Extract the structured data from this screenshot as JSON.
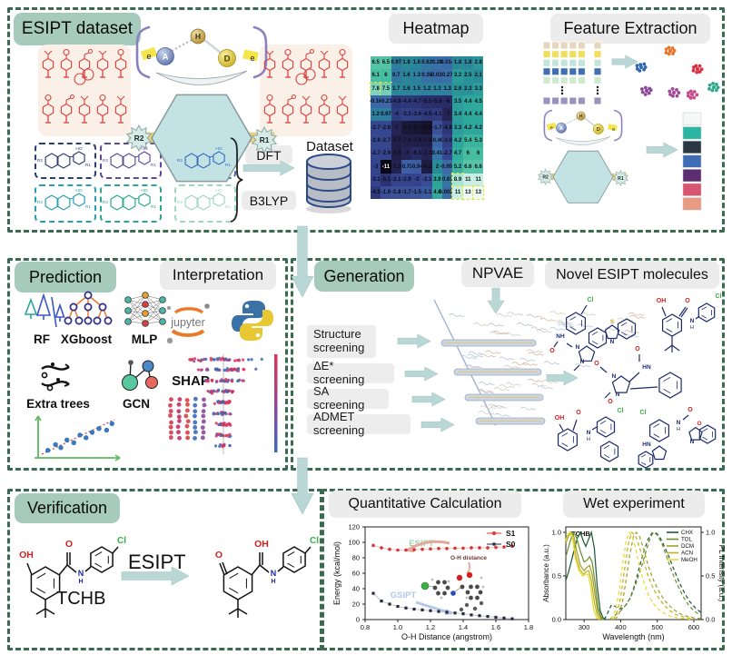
{
  "colors": {
    "section_border": "#3b6a50",
    "green_label_bg": "#a6cbbd",
    "gray_label_bg": "#ececec",
    "arrow": "#b9d7d5",
    "red_molecule": "#d64541",
    "hexagon_fill": "#c2e2e4",
    "bracket_purple": "#8c7fc0",
    "s1_red": "#e03030",
    "s0_navy": "#232a45"
  },
  "dataset": {
    "title": "ESIPT dataset",
    "motif": {
      "acceptor": "A",
      "hydrogen": "H",
      "donor": "D",
      "electron": "e",
      "left_substituent": "R2",
      "right_substituent": "R1"
    },
    "scaffold_labels": {
      "left": "R2",
      "right": "R1",
      "hydroxyl": "HO"
    },
    "method_1": "DFT",
    "method_2": "B3LYP",
    "database_label": "Dataset"
  },
  "heatmap": {
    "title": "Heatmap"
  },
  "feature_extraction": {
    "title": "Feature Extraction",
    "palette": [
      "#f4f8f6",
      "#2cb5a2",
      "#2b3744",
      "#3f6db5",
      "#5c2d71",
      "#d85570",
      "#e89b82"
    ]
  },
  "prediction": {
    "title": "Prediction",
    "models": [
      "RF",
      "XGboost",
      "MLP",
      "Extra trees",
      "GCN"
    ],
    "scatter_points": [
      [
        0.08,
        0.15
      ],
      [
        0.18,
        0.3
      ],
      [
        0.25,
        0.22
      ],
      [
        0.33,
        0.42
      ],
      [
        0.42,
        0.35
      ],
      [
        0.5,
        0.55
      ],
      [
        0.58,
        0.48
      ],
      [
        0.66,
        0.62
      ],
      [
        0.75,
        0.72
      ],
      [
        0.85,
        0.68
      ],
      [
        0.92,
        0.85
      ]
    ]
  },
  "interpretation": {
    "title": "Interpretation",
    "jupyter_label": "jupyter",
    "shap_label": "SHAP"
  },
  "generation": {
    "title": "Generation",
    "npvae_label": "NPVAE",
    "screens": [
      "Structure screening",
      "ΔE* screening",
      "SA screening",
      "ADMET screening"
    ]
  },
  "novel": {
    "title": "Novel ESIPT molecules",
    "atom_labels": {
      "cl": "Cl",
      "oh": "OH",
      "o": "O",
      "n": "N",
      "nh": "NH",
      "hn": "HN",
      "s": "S",
      "h": "H"
    }
  },
  "verification": {
    "title": "Verification",
    "molecule_name": "TCHB",
    "process_label": "ESIPT",
    "atom_labels": {
      "oh": "OH",
      "o": "O",
      "cl": "Cl",
      "n": "N",
      "h": "H"
    }
  },
  "quantitative": {
    "title": "Quantitative Calculation"
  },
  "wet": {
    "title": "Wet experiment"
  },
  "chart_data": [
    {
      "id": "correlation_heatmap",
      "type": "heatmap",
      "title": "Heatmap",
      "colormap": "light-mint(high) -> teal -> blue -> dark-navy(low)",
      "highlight_cells": [
        [
          2,
          0
        ],
        [
          2,
          1
        ],
        [
          9,
          8
        ],
        [
          10,
          8
        ],
        [
          10,
          9
        ],
        [
          10,
          10
        ]
      ],
      "values": [
        [
          6.5,
          6.5,
          0.97,
          1.8,
          1.6,
          0.62,
          0.26,
          0.014,
          1.8,
          1.8,
          2.8
        ],
        [
          6.1,
          6,
          0.7,
          1.6,
          1.3,
          0.35,
          -0.036,
          0.27,
          3.2,
          2.5,
          2.1
        ],
        [
          7.8,
          7.5,
          1.7,
          1.6,
          1.5,
          1.2,
          1.3,
          1.3,
          2.6,
          2.3,
          3.3
        ],
        [
          -0.16,
          -0.21,
          -4.9,
          -4.4,
          -4.7,
          -5.5,
          -5.8,
          -6,
          3.5,
          4.4,
          4.5
        ],
        [
          1.2,
          0.97,
          -4,
          -3.3,
          -3.6,
          -4.5,
          -4.1,
          -7,
          3.4,
          4.4,
          4.4
        ],
        [
          -2.7,
          -2.8,
          -7,
          -8.8,
          -9.1,
          -9.6,
          -1.7,
          -4.8,
          3.3,
          4.2,
          4.2
        ],
        [
          -2.6,
          -2.7,
          -7.7,
          -7.5,
          -7.6,
          -7.8,
          -0.46,
          -3.6,
          4.2,
          5.4,
          5.3
        ],
        [
          -2.7,
          -2.9,
          -7.9,
          -7,
          -6.1,
          -7.1,
          0.41,
          -2.7,
          4.7,
          6,
          6
        ],
        [
          -3,
          -11,
          -7.2,
          -0.73,
          -0.94,
          -8.2,
          2,
          -0.002,
          5.2,
          6.6,
          6.6
        ],
        [
          -3.1,
          -5.1,
          -3.1,
          -2.9,
          -3,
          -2.1,
          3.9,
          0.61,
          8.9,
          11,
          11
        ],
        [
          -4.5,
          -1.9,
          -1.8,
          -1.7,
          -1.5,
          -1.1,
          4.6,
          0.0023,
          11,
          13,
          13
        ]
      ]
    },
    {
      "id": "energy_profile",
      "type": "line",
      "xlabel": "O-H Distance (angstrom)",
      "ylabel": "Energy (kcal/mol)",
      "xlim": [
        0.8,
        1.8
      ],
      "ylim": [
        0,
        120
      ],
      "xticks": [
        0.8,
        1.0,
        1.2,
        1.4,
        1.6,
        1.8
      ],
      "yticks": [
        0,
        20,
        40,
        60,
        80,
        100,
        120
      ],
      "legend_position": "top-right",
      "annotations": [
        {
          "text": "ESIPT",
          "color": "#9fd0b2"
        },
        {
          "text": "GSIPT",
          "color": "#b3c9e4"
        },
        {
          "text": "O-H distance",
          "color": "#8a4a3a"
        }
      ],
      "x": [
        0.85,
        0.9,
        0.95,
        1.0,
        1.05,
        1.1,
        1.15,
        1.2,
        1.25,
        1.3,
        1.35,
        1.4,
        1.45,
        1.5,
        1.55,
        1.6,
        1.65,
        1.7
      ],
      "series": [
        {
          "name": "S1",
          "color": "#e03030",
          "values": [
            96,
            93,
            91,
            90,
            90,
            90.5,
            91,
            91.5,
            92,
            92,
            92.5,
            92.5,
            93,
            93,
            93,
            93.5,
            94,
            95
          ]
        },
        {
          "name": "S0",
          "color": "#232a45",
          "values": [
            34,
            24,
            20,
            17,
            15,
            13.5,
            12.5,
            11.5,
            10.5,
            9.5,
            8.5,
            7.5,
            6,
            5,
            4,
            3,
            2,
            1
          ]
        }
      ]
    },
    {
      "id": "spectra",
      "type": "line",
      "inset_label": "TCHB",
      "xlabel": "Wavelength (nm)",
      "ylabel_left": "Absorbance (a.u.)",
      "ylabel_right": "PL Intensity (a.u.)",
      "xlim": [
        250,
        620
      ],
      "xticks": [
        300,
        400,
        500,
        600
      ],
      "yticks": [
        0.0,
        0.5,
        1.0
      ],
      "legend_position": "top-right",
      "solvents": [
        {
          "name": "CHX",
          "color": "#1f5c39"
        },
        {
          "name": "TOL",
          "color": "#6f8f2f"
        },
        {
          "name": "DCM",
          "color": "#9fa32b"
        },
        {
          "name": "ACN",
          "color": "#c2b322"
        },
        {
          "name": "MeOH",
          "color": "#e3dc30"
        }
      ],
      "absorbance": {
        "CHX": [
          [
            250,
            0.45
          ],
          [
            258,
            0.55
          ],
          [
            266,
            0.68
          ],
          [
            274,
            0.82
          ],
          [
            282,
            0.94
          ],
          [
            290,
            1.0
          ],
          [
            298,
            0.9
          ],
          [
            305,
            0.84
          ],
          [
            312,
            0.92
          ],
          [
            320,
            1.0
          ],
          [
            328,
            0.82
          ],
          [
            336,
            0.38
          ],
          [
            344,
            0.1
          ],
          [
            352,
            0.02
          ],
          [
            360,
            0.0
          ]
        ],
        "TOL": [
          [
            250,
            0.72
          ],
          [
            258,
            0.84
          ],
          [
            266,
            0.95
          ],
          [
            272,
            1.0
          ],
          [
            280,
            0.93
          ],
          [
            290,
            0.78
          ],
          [
            300,
            0.66
          ],
          [
            308,
            0.68
          ],
          [
            315,
            0.72
          ],
          [
            322,
            0.66
          ],
          [
            330,
            0.42
          ],
          [
            338,
            0.14
          ],
          [
            346,
            0.03
          ],
          [
            354,
            0.0
          ]
        ],
        "DCM": [
          [
            250,
            0.88
          ],
          [
            258,
            0.96
          ],
          [
            265,
            1.0
          ],
          [
            272,
            0.95
          ],
          [
            280,
            0.78
          ],
          [
            290,
            0.62
          ],
          [
            300,
            0.56
          ],
          [
            308,
            0.6
          ],
          [
            315,
            0.62
          ],
          [
            322,
            0.52
          ],
          [
            330,
            0.28
          ],
          [
            338,
            0.08
          ],
          [
            346,
            0.01
          ],
          [
            352,
            0.0
          ]
        ],
        "ACN": [
          [
            250,
            0.92
          ],
          [
            256,
            0.98
          ],
          [
            262,
            1.0
          ],
          [
            270,
            0.92
          ],
          [
            278,
            0.72
          ],
          [
            288,
            0.58
          ],
          [
            298,
            0.52
          ],
          [
            306,
            0.55
          ],
          [
            313,
            0.56
          ],
          [
            320,
            0.44
          ],
          [
            328,
            0.2
          ],
          [
            336,
            0.05
          ],
          [
            344,
            0.0
          ]
        ],
        "MeOH": [
          [
            250,
            0.9
          ],
          [
            256,
            0.98
          ],
          [
            262,
            1.0
          ],
          [
            268,
            0.95
          ],
          [
            276,
            0.7
          ],
          [
            286,
            0.56
          ],
          [
            296,
            0.5
          ],
          [
            304,
            0.52
          ],
          [
            311,
            0.52
          ],
          [
            318,
            0.38
          ],
          [
            326,
            0.12
          ],
          [
            334,
            0.02
          ],
          [
            342,
            0.0
          ]
        ]
      },
      "emission": {
        "CHX": [
          [
            355,
            0.0
          ],
          [
            365,
            0.08
          ],
          [
            375,
            0.17
          ],
          [
            385,
            0.15
          ],
          [
            395,
            0.12
          ],
          [
            405,
            0.13
          ],
          [
            415,
            0.17
          ],
          [
            425,
            0.24
          ],
          [
            435,
            0.35
          ],
          [
            445,
            0.5
          ],
          [
            455,
            0.66
          ],
          [
            465,
            0.8
          ],
          [
            475,
            0.92
          ],
          [
            485,
            0.99
          ],
          [
            495,
            1.0
          ],
          [
            505,
            0.96
          ],
          [
            515,
            0.88
          ],
          [
            530,
            0.74
          ],
          [
            545,
            0.58
          ],
          [
            560,
            0.43
          ],
          [
            575,
            0.3
          ],
          [
            590,
            0.2
          ],
          [
            605,
            0.13
          ],
          [
            620,
            0.08
          ]
        ],
        "TOL": [
          [
            370,
            0.0
          ],
          [
            385,
            0.05
          ],
          [
            400,
            0.1
          ],
          [
            415,
            0.17
          ],
          [
            430,
            0.28
          ],
          [
            445,
            0.45
          ],
          [
            460,
            0.65
          ],
          [
            472,
            0.82
          ],
          [
            482,
            0.95
          ],
          [
            490,
            1.0
          ],
          [
            500,
            0.97
          ],
          [
            512,
            0.88
          ],
          [
            526,
            0.72
          ],
          [
            540,
            0.55
          ],
          [
            555,
            0.4
          ],
          [
            570,
            0.27
          ],
          [
            585,
            0.17
          ],
          [
            600,
            0.1
          ],
          [
            615,
            0.06
          ]
        ],
        "DCM": [
          [
            385,
            0.0
          ],
          [
            395,
            0.06
          ],
          [
            405,
            0.2
          ],
          [
            415,
            0.45
          ],
          [
            425,
            0.75
          ],
          [
            435,
            0.95
          ],
          [
            443,
            1.0
          ],
          [
            452,
            0.95
          ],
          [
            462,
            0.82
          ],
          [
            475,
            0.62
          ],
          [
            490,
            0.45
          ],
          [
            505,
            0.32
          ],
          [
            520,
            0.22
          ],
          [
            535,
            0.15
          ],
          [
            550,
            0.1
          ],
          [
            565,
            0.06
          ],
          [
            580,
            0.04
          ],
          [
            600,
            0.02
          ],
          [
            620,
            0.01
          ]
        ],
        "ACN": [
          [
            380,
            0.0
          ],
          [
            390,
            0.08
          ],
          [
            400,
            0.25
          ],
          [
            410,
            0.55
          ],
          [
            420,
            0.85
          ],
          [
            430,
            1.0
          ],
          [
            440,
            0.97
          ],
          [
            450,
            0.85
          ],
          [
            462,
            0.68
          ],
          [
            475,
            0.5
          ],
          [
            490,
            0.35
          ],
          [
            505,
            0.24
          ],
          [
            520,
            0.16
          ],
          [
            535,
            0.1
          ],
          [
            550,
            0.06
          ],
          [
            565,
            0.04
          ],
          [
            580,
            0.02
          ],
          [
            600,
            0.01
          ]
        ],
        "MeOH": [
          [
            375,
            0.0
          ],
          [
            385,
            0.1
          ],
          [
            395,
            0.3
          ],
          [
            405,
            0.62
          ],
          [
            415,
            0.9
          ],
          [
            423,
            1.0
          ],
          [
            432,
            0.95
          ],
          [
            442,
            0.8
          ],
          [
            452,
            0.6
          ],
          [
            464,
            0.42
          ],
          [
            476,
            0.28
          ],
          [
            490,
            0.18
          ],
          [
            505,
            0.11
          ],
          [
            520,
            0.07
          ],
          [
            535,
            0.04
          ],
          [
            555,
            0.02
          ],
          [
            575,
            0.01
          ],
          [
            600,
            0.0
          ]
        ]
      }
    }
  ]
}
